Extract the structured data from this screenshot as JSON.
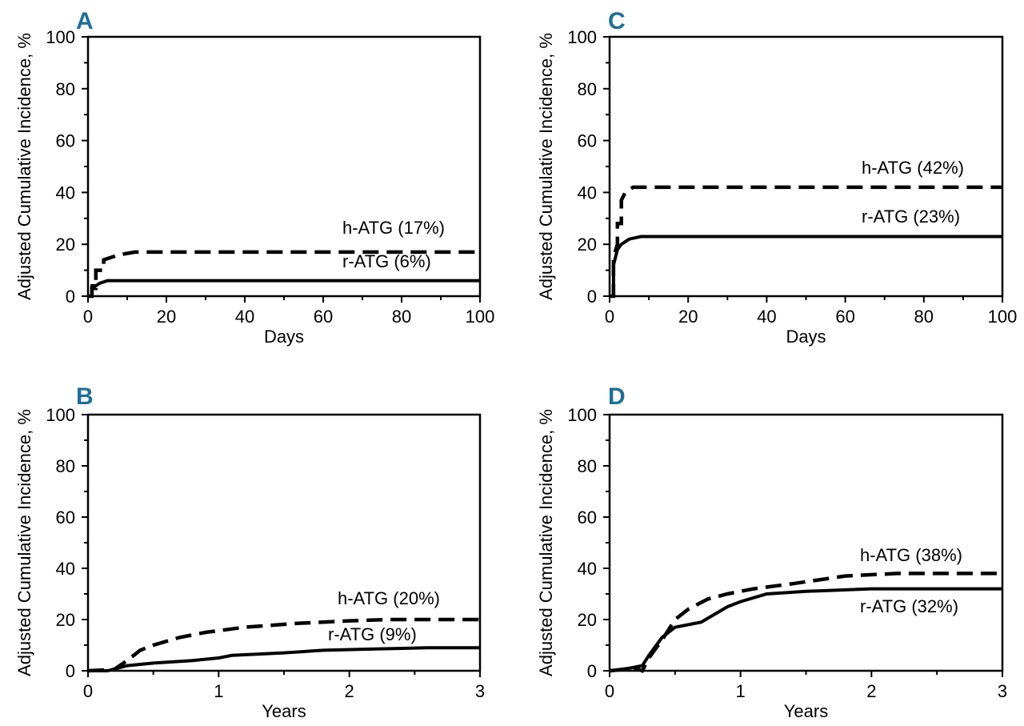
{
  "chart_data": [
    {
      "panel": "A",
      "type": "line",
      "xlabel": "Days",
      "ylabel": "Adjusted Cumulative Incidence, %",
      "xlim": [
        0,
        100
      ],
      "ylim": [
        0,
        100
      ],
      "xticks": [
        0,
        20,
        40,
        60,
        80,
        100
      ],
      "yticks": [
        0,
        20,
        40,
        60,
        80,
        100
      ],
      "series": [
        {
          "name": "h-ATG (17%)",
          "style": "dashed",
          "points": [
            [
              0,
              0
            ],
            [
              1,
              0
            ],
            [
              1,
              3
            ],
            [
              2,
              3
            ],
            [
              2,
              10
            ],
            [
              4,
              10
            ],
            [
              4,
              14
            ],
            [
              6,
              15
            ],
            [
              8,
              16
            ],
            [
              12,
              17
            ],
            [
              100,
              17
            ]
          ]
        },
        {
          "name": "r-ATG (6%)",
          "style": "solid",
          "points": [
            [
              0,
              0
            ],
            [
              1,
              0
            ],
            [
              1,
              4
            ],
            [
              2,
              4
            ],
            [
              3,
              5
            ],
            [
              5,
              6
            ],
            [
              100,
              6
            ]
          ]
        }
      ]
    },
    {
      "panel": "B",
      "type": "line",
      "xlabel": "Years",
      "ylabel": "Adjusted Cumulative Incidence, %",
      "xlim": [
        0,
        3
      ],
      "ylim": [
        0,
        100
      ],
      "xticks": [
        0,
        1,
        2,
        3
      ],
      "yticks": [
        0,
        20,
        40,
        60,
        80,
        100
      ],
      "series": [
        {
          "name": "h-ATG (20%)",
          "style": "dashed",
          "points": [
            [
              0,
              0
            ],
            [
              0.2,
              0.5
            ],
            [
              0.3,
              4
            ],
            [
              0.4,
              8
            ],
            [
              0.5,
              10
            ],
            [
              0.7,
              13
            ],
            [
              0.9,
              15
            ],
            [
              1.2,
              17
            ],
            [
              1.6,
              18.5
            ],
            [
              2.0,
              19.5
            ],
            [
              2.3,
              20
            ],
            [
              3,
              20
            ]
          ]
        },
        {
          "name": "r-ATG (9%)",
          "style": "solid",
          "points": [
            [
              0,
              0
            ],
            [
              0.15,
              0
            ],
            [
              0.3,
              2
            ],
            [
              0.5,
              3
            ],
            [
              0.8,
              4
            ],
            [
              1.0,
              5
            ],
            [
              1.1,
              6
            ],
            [
              1.5,
              7
            ],
            [
              1.8,
              8
            ],
            [
              2.2,
              8.5
            ],
            [
              2.6,
              9
            ],
            [
              3,
              9
            ]
          ]
        }
      ]
    },
    {
      "panel": "C",
      "type": "line",
      "xlabel": "Days",
      "ylabel": "Adjusted Cumulative Incidence, %",
      "xlim": [
        0,
        100
      ],
      "ylim": [
        0,
        100
      ],
      "xticks": [
        0,
        20,
        40,
        60,
        80,
        100
      ],
      "yticks": [
        0,
        20,
        40,
        60,
        80,
        100
      ],
      "series": [
        {
          "name": "h-ATG (42%)",
          "style": "dashed",
          "points": [
            [
              0,
              0
            ],
            [
              1,
              0
            ],
            [
              1,
              15
            ],
            [
              2,
              20
            ],
            [
              2,
              28
            ],
            [
              3,
              28
            ],
            [
              3,
              37
            ],
            [
              4,
              40
            ],
            [
              6,
              42
            ],
            [
              100,
              42
            ]
          ]
        },
        {
          "name": "r-ATG (23%)",
          "style": "solid",
          "points": [
            [
              0,
              0
            ],
            [
              1,
              0
            ],
            [
              1,
              12
            ],
            [
              2,
              18
            ],
            [
              3,
              20
            ],
            [
              5,
              22
            ],
            [
              8,
              23
            ],
            [
              100,
              23
            ]
          ]
        }
      ]
    },
    {
      "panel": "D",
      "type": "line",
      "xlabel": "Years",
      "ylabel": "Adjusted Cumulative Incidence, %",
      "xlim": [
        0,
        3
      ],
      "ylim": [
        0,
        100
      ],
      "xticks": [
        0,
        1,
        2,
        3
      ],
      "yticks": [
        0,
        20,
        40,
        60,
        80,
        100
      ],
      "series": [
        {
          "name": "h-ATG (38%)",
          "style": "dashed",
          "points": [
            [
              0,
              0
            ],
            [
              0.2,
              1
            ],
            [
              0.25,
              0
            ],
            [
              0.3,
              5
            ],
            [
              0.4,
              12
            ],
            [
              0.5,
              20
            ],
            [
              0.6,
              24
            ],
            [
              0.75,
              28
            ],
            [
              0.9,
              30
            ],
            [
              1.1,
              32
            ],
            [
              1.4,
              34
            ],
            [
              1.8,
              37
            ],
            [
              2.2,
              38
            ],
            [
              3,
              38
            ]
          ]
        },
        {
          "name": "r-ATG (32%)",
          "style": "solid",
          "points": [
            [
              0,
              0
            ],
            [
              0.15,
              1
            ],
            [
              0.25,
              2
            ],
            [
              0.3,
              6
            ],
            [
              0.4,
              13
            ],
            [
              0.5,
              17
            ],
            [
              0.7,
              19
            ],
            [
              0.8,
              22
            ],
            [
              0.9,
              25
            ],
            [
              1.0,
              27
            ],
            [
              1.2,
              30
            ],
            [
              1.5,
              31
            ],
            [
              2.0,
              32
            ],
            [
              3,
              32
            ]
          ]
        }
      ]
    }
  ]
}
